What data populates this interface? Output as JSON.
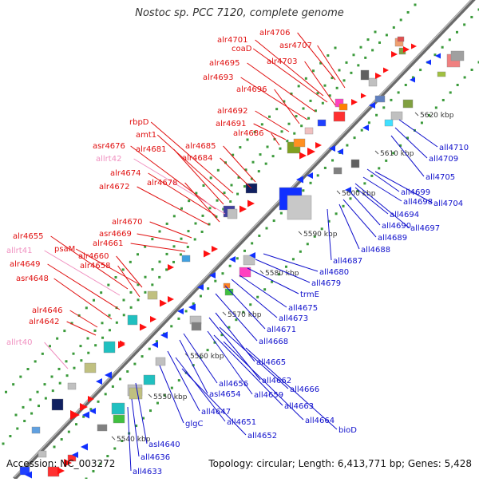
{
  "title": "Nostoc sp. PCC 7120, complete genome",
  "footer": {
    "accession": "Accession: NC_003272",
    "summary": "Topology: circular; Length: 6,413,771 bp; Genes: 5,428"
  },
  "colors": {
    "forward_label": "#e01010",
    "reverse_label": "#1010cc",
    "rna_label": "#f090c0",
    "axis": "#888888",
    "tick_dot": "#3a9a3a",
    "kbp_label": "#333333"
  },
  "kbp_ticks": [
    "5540 kbp",
    "5550 kbp",
    "5560 kbp",
    "5570 kbp",
    "5580 kbp",
    "5590 kbp",
    "5600 kbp",
    "5610 kbp",
    "5620 kbp"
  ],
  "forward_labels": [
    "alr4706",
    "asr4707",
    "alr4701",
    "coaD",
    "alr4703",
    "alr4695",
    "alr4693",
    "alr4696",
    "alr4692",
    "alr4691",
    "alr4686",
    "alr4685",
    "alr4684",
    "rbpD",
    "amt1",
    "alr4681",
    "asr4676",
    "allrt42",
    "alr4674",
    "alr4678",
    "alr4672",
    "alr4670",
    "asr4669",
    "alr4661",
    "alr4655",
    "psaM",
    "alr4660",
    "allrt41",
    "alr4658",
    "alr4649",
    "asr4648",
    "alr4646",
    "alr4642",
    "allrt40"
  ],
  "reverse_labels": [
    "all4710",
    "all4709",
    "all4705",
    "all4699",
    "all4698",
    "all4704",
    "all4694",
    "all4690",
    "all4697",
    "all4689",
    "all4688",
    "all4687",
    "all4680",
    "all4679",
    "trmE",
    "all4675",
    "all4673",
    "all4671",
    "all4668",
    "all4665",
    "all4662",
    "all4666",
    "all4656",
    "asl4654",
    "all4659",
    "all4663",
    "all4664",
    "bioD",
    "all4647",
    "all4651",
    "glgC",
    "all4652",
    "asl4640",
    "all4636",
    "all4633"
  ]
}
